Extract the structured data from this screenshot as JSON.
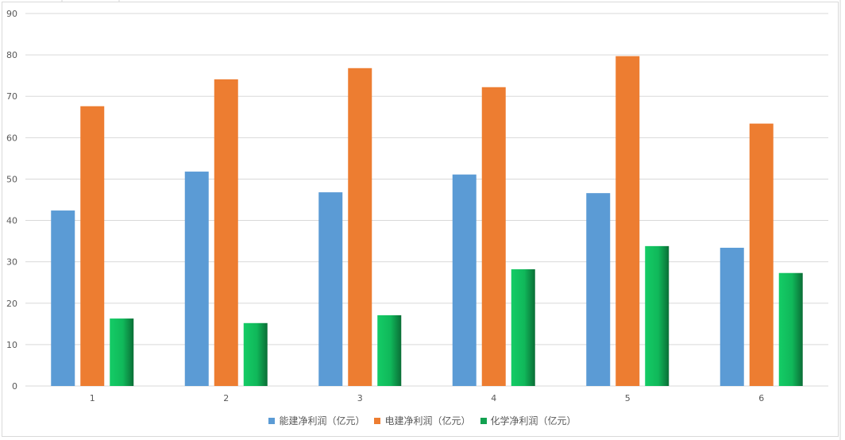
{
  "chart_data": {
    "type": "bar",
    "title": "",
    "xlabel": "",
    "ylabel": "",
    "categories": [
      "1",
      "2",
      "3",
      "4",
      "5",
      "6"
    ],
    "ylim": [
      0,
      90
    ],
    "yticks": [
      0,
      10,
      20,
      30,
      40,
      50,
      60,
      70,
      80,
      90
    ],
    "grid": true,
    "legend_position": "bottom",
    "series": [
      {
        "name": "能建净利润（亿元）",
        "color": "#5B9BD5",
        "values": [
          42.4,
          51.8,
          46.8,
          51.1,
          46.6,
          33.4
        ]
      },
      {
        "name": "电建净利润（亿元）",
        "color": "#ED7D31",
        "values": [
          67.6,
          74.1,
          76.8,
          72.2,
          79.7,
          63.4
        ]
      },
      {
        "name": "化学净利润（亿元）",
        "color": "#12A150",
        "values": [
          16.3,
          15.2,
          17.1,
          28.2,
          33.8,
          27.3
        ]
      }
    ]
  }
}
